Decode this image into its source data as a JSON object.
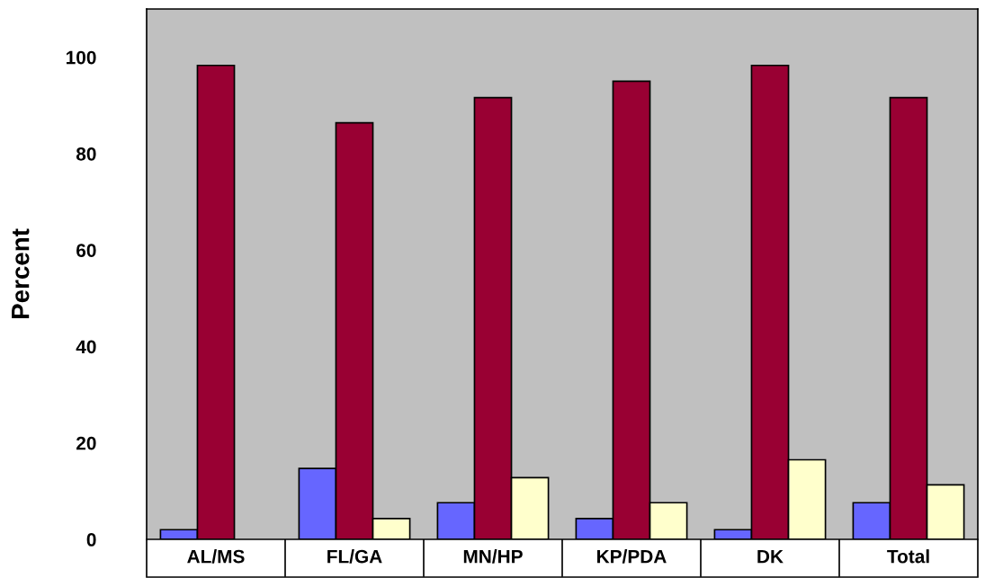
{
  "chart_data": {
    "type": "bar",
    "ylabel": "Percent",
    "categories": [
      "AL/MS",
      "FL/GA",
      "MN/HP",
      "KP/PDA",
      "DK",
      "Total"
    ],
    "series": [
      {
        "color": "#6666ff",
        "values": [
          2,
          14.7,
          7.6,
          4.3,
          2,
          7.6
        ]
      },
      {
        "color": "#990033",
        "values": [
          98.3,
          86.4,
          91.6,
          95,
          98.3,
          91.6
        ]
      },
      {
        "color": "#ffffcc",
        "values": [
          null,
          4.3,
          12.8,
          7.6,
          16.5,
          11.3
        ]
      }
    ],
    "ylim": [
      0,
      110
    ],
    "yticks": [
      0,
      20,
      40,
      60,
      80,
      100
    ],
    "grid": false,
    "legend": false
  }
}
